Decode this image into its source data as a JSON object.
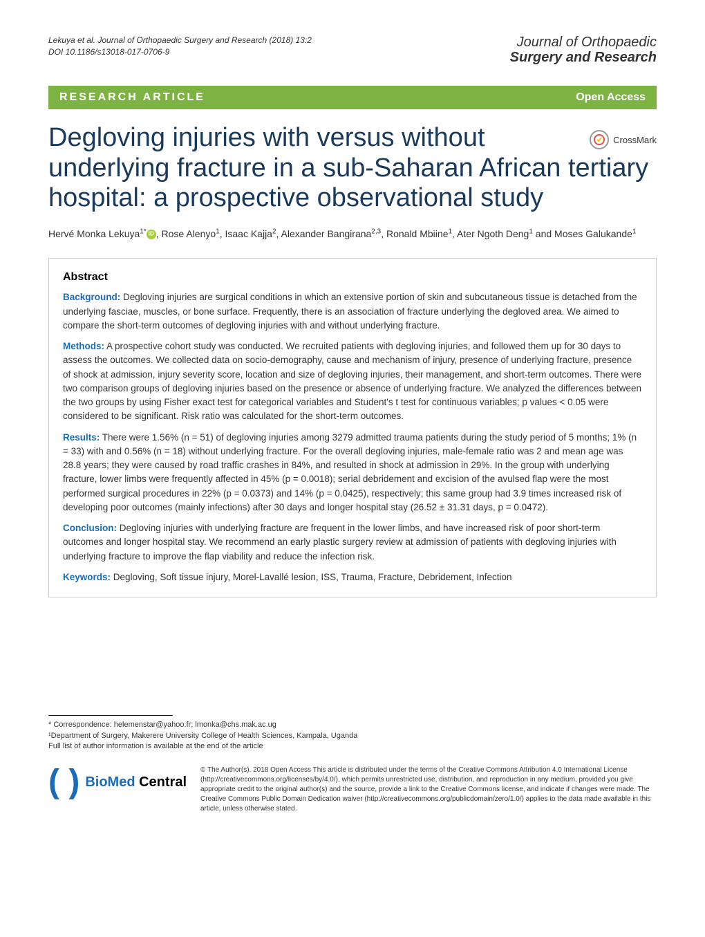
{
  "citation": {
    "line1": "Lekuya et al. Journal of Orthopaedic Surgery and Research  (2018) 13:2",
    "line2": "DOI 10.1186/s13018-017-0706-9"
  },
  "journal": {
    "name_top": "Journal of Orthopaedic",
    "name_bottom": "Surgery and Research"
  },
  "article_type": "RESEARCH ARTICLE",
  "open_access": "Open Access",
  "crossmark": "CrossMark",
  "title": "Degloving injuries with versus without underlying fracture in a sub-Saharan African tertiary hospital: a prospective observational study",
  "authors_html": "Hervé Monka Lekuya<sup>1*</sup><span class='orcid-icon' data-name='orcid-icon' data-interactable='false'></span>, Rose Alenyo<sup>1</sup>, Isaac Kajja<sup>2</sup>, Alexander Bangirana<sup>2,3</sup>, Ronald Mbiine<sup>1</sup>, Ater Ngoth Deng<sup>1</sup> and Moses Galukande<sup>1</sup>",
  "abstract": {
    "heading": "Abstract",
    "background_label": "Background:",
    "background": " Degloving injuries are surgical conditions in which an extensive portion of skin and subcutaneous tissue is detached from the underlying fasciae, muscles, or bone surface. Frequently, there is an association of fracture underlying the degloved area. We aimed to compare the short-term outcomes of degloving injuries with and without underlying fracture.",
    "methods_label": "Methods:",
    "methods": " A prospective cohort study was conducted. We recruited patients with degloving injuries, and followed them up for 30 days to assess the outcomes. We collected data on socio-demography, cause and mechanism of injury, presence of underlying fracture, presence of shock at admission, injury severity score, location and size of degloving injuries, their management, and short-term outcomes. There were two comparison groups of degloving injuries based on the presence or absence of underlying fracture. We analyzed the differences between the two groups by using Fisher exact test for categorical variables and Student's t test for continuous variables; p values < 0.05 were considered to be significant. Risk ratio was calculated for the short-term outcomes.",
    "results_label": "Results:",
    "results": " There were 1.56% (n = 51) of degloving injuries among 3279 admitted trauma patients during the study period of 5 months; 1% (n = 33) with and 0.56% (n = 18) without underlying fracture. For the overall degloving injuries, male-female ratio was 2 and mean age was 28.8 years; they were caused by road traffic crashes in 84%, and resulted in shock at admission in 29%. In the group with underlying fracture, lower limbs were frequently affected in 45% (p = 0.0018); serial debridement and excision of the avulsed flap were the most performed surgical procedures in 22% (p = 0.0373) and 14% (p = 0.0425), respectively; this same group had 3.9 times increased risk of developing poor outcomes (mainly infections) after 30 days and longer hospital stay (26.52 ± 31.31 days, p = 0.0472).",
    "conclusion_label": "Conclusion:",
    "conclusion": " Degloving injuries with underlying fracture are frequent in the lower limbs, and have increased risk of poor short-term outcomes and longer hospital stay. We recommend an early plastic surgery review at admission of patients with degloving injuries with underlying fracture to improve the flap viability and reduce the infection risk.",
    "keywords_label": "Keywords:",
    "keywords": " Degloving, Soft tissue injury, Morel-Lavallé lesion, ISS, Trauma, Fracture, Debridement, Infection"
  },
  "correspondence": {
    "line1": "* Correspondence: helemenstar@yahoo.fr; lmonka@chs.mak.ac.ug",
    "line2": "¹Department of Surgery, Makerere University College of Health Sciences, Kampala, Uganda",
    "line3": "Full list of author information is available at the end of the article"
  },
  "publisher": {
    "bio": "BioMed",
    "central": " Central"
  },
  "license": "© The Author(s). 2018 Open Access This article is distributed under the terms of the Creative Commons Attribution 4.0 International License (http://creativecommons.org/licenses/by/4.0/), which permits unrestricted use, distribution, and reproduction in any medium, provided you give appropriate credit to the original author(s) and the source, provide a link to the Creative Commons license, and indicate if changes were made. The Creative Commons Public Domain Dedication waiver (http://creativecommons.org/publicdomain/zero/1.0/) applies to the data made available in this article, unless otherwise stated.",
  "colors": {
    "bar_bg": "#7cb342",
    "title_color": "#1a3a5c",
    "link_blue": "#1a6bb8",
    "orcid_green": "#a6ce39"
  }
}
